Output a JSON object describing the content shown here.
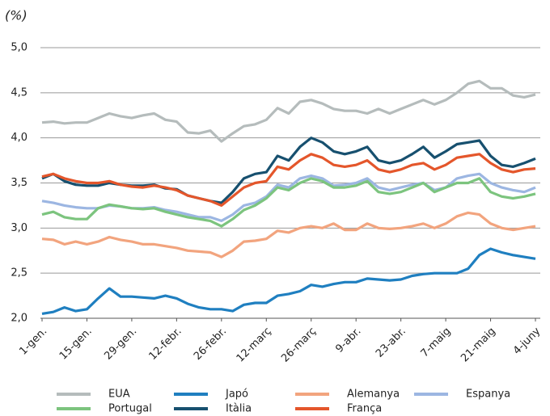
{
  "chart_data": {
    "type": "line",
    "title": "(%)",
    "categories": [
      "1-gen.",
      null,
      null,
      null,
      "15-gen.",
      null,
      null,
      null,
      "29-gen.",
      null,
      null,
      null,
      "12-febr.",
      null,
      null,
      null,
      "26-febr.",
      null,
      null,
      null,
      "12-març",
      null,
      null,
      null,
      "26-març",
      null,
      null,
      null,
      "9-abr.",
      null,
      null,
      null,
      "23-abr.",
      null,
      null,
      null,
      "7-maig",
      null,
      null,
      null,
      "21-maig",
      null,
      null,
      null,
      "4-juny"
    ],
    "ylim": [
      2.0,
      5.0
    ],
    "yticks": [
      {
        "value": 2.0,
        "label": "2,0"
      },
      {
        "value": 2.5,
        "label": "2,5"
      },
      {
        "value": 3.0,
        "label": "3,0"
      },
      {
        "value": 3.5,
        "label": "3,5"
      },
      {
        "value": 4.0,
        "label": "4,0"
      },
      {
        "value": 4.5,
        "label": "4,5"
      },
      {
        "value": 5.0,
        "label": "5,0"
      }
    ],
    "grid": true,
    "series": [
      {
        "name": "EUA",
        "color": "#b5bcbc",
        "values": [
          4.17,
          4.18,
          4.16,
          4.17,
          4.17,
          4.22,
          4.27,
          4.24,
          4.22,
          4.25,
          4.27,
          4.2,
          4.18,
          4.06,
          4.05,
          4.08,
          3.96,
          4.05,
          4.13,
          4.15,
          4.2,
          4.33,
          4.27,
          4.4,
          4.42,
          4.38,
          4.32,
          4.3,
          4.3,
          4.27,
          4.32,
          4.27,
          4.32,
          4.37,
          4.42,
          4.37,
          4.42,
          4.5,
          4.6,
          4.63,
          4.55,
          4.55,
          4.47,
          4.45,
          4.48
        ]
      },
      {
        "name": "Japó",
        "color": "#1f7fc0",
        "values": [
          2.05,
          2.07,
          2.12,
          2.08,
          2.1,
          2.22,
          2.33,
          2.24,
          2.24,
          2.23,
          2.22,
          2.25,
          2.22,
          2.16,
          2.12,
          2.1,
          2.1,
          2.08,
          2.15,
          2.17,
          2.17,
          2.25,
          2.27,
          2.3,
          2.37,
          2.35,
          2.38,
          2.4,
          2.4,
          2.44,
          2.43,
          2.42,
          2.43,
          2.47,
          2.49,
          2.5,
          2.5,
          2.5,
          2.55,
          2.7,
          2.77,
          2.73,
          2.7,
          2.68,
          2.66
        ]
      },
      {
        "name": "Alemanya",
        "color": "#f2a47e",
        "values": [
          2.88,
          2.87,
          2.82,
          2.85,
          2.82,
          2.85,
          2.9,
          2.87,
          2.85,
          2.82,
          2.82,
          2.8,
          2.78,
          2.75,
          2.74,
          2.73,
          2.68,
          2.75,
          2.85,
          2.86,
          2.88,
          2.97,
          2.95,
          3.0,
          3.02,
          3.0,
          3.05,
          2.98,
          2.98,
          3.05,
          3.0,
          2.99,
          3.0,
          3.02,
          3.05,
          3.0,
          3.05,
          3.13,
          3.17,
          3.15,
          3.05,
          3.0,
          2.98,
          3.0,
          3.02
        ]
      },
      {
        "name": "Espanya",
        "color": "#9cb6e2",
        "values": [
          3.3,
          3.28,
          3.25,
          3.23,
          3.22,
          3.22,
          3.25,
          3.24,
          3.22,
          3.22,
          3.23,
          3.2,
          3.18,
          3.15,
          3.12,
          3.12,
          3.08,
          3.15,
          3.25,
          3.28,
          3.35,
          3.48,
          3.45,
          3.55,
          3.58,
          3.55,
          3.47,
          3.48,
          3.5,
          3.55,
          3.45,
          3.42,
          3.45,
          3.48,
          3.5,
          3.42,
          3.45,
          3.55,
          3.58,
          3.6,
          3.5,
          3.45,
          3.42,
          3.4,
          3.45
        ]
      },
      {
        "name": "Portugal",
        "color": "#7cc47e",
        "values": [
          3.15,
          3.18,
          3.12,
          3.1,
          3.1,
          3.22,
          3.26,
          3.24,
          3.22,
          3.21,
          3.22,
          3.18,
          3.15,
          3.12,
          3.1,
          3.08,
          3.02,
          3.1,
          3.2,
          3.25,
          3.33,
          3.45,
          3.42,
          3.5,
          3.55,
          3.52,
          3.45,
          3.45,
          3.47,
          3.52,
          3.4,
          3.38,
          3.4,
          3.45,
          3.5,
          3.4,
          3.45,
          3.5,
          3.5,
          3.55,
          3.4,
          3.35,
          3.33,
          3.35,
          3.38
        ]
      },
      {
        "name": "Itàlia",
        "color": "#17506f",
        "values": [
          3.55,
          3.6,
          3.52,
          3.48,
          3.47,
          3.47,
          3.5,
          3.48,
          3.47,
          3.47,
          3.48,
          3.44,
          3.43,
          3.36,
          3.33,
          3.3,
          3.28,
          3.4,
          3.55,
          3.6,
          3.62,
          3.8,
          3.75,
          3.9,
          4.0,
          3.95,
          3.85,
          3.82,
          3.85,
          3.9,
          3.75,
          3.72,
          3.75,
          3.82,
          3.9,
          3.78,
          3.85,
          3.93,
          3.95,
          3.97,
          3.8,
          3.7,
          3.68,
          3.72,
          3.77
        ]
      },
      {
        "name": "França",
        "color": "#e4562b",
        "values": [
          3.57,
          3.6,
          3.55,
          3.52,
          3.5,
          3.5,
          3.52,
          3.48,
          3.46,
          3.45,
          3.47,
          3.45,
          3.42,
          3.36,
          3.33,
          3.3,
          3.25,
          3.35,
          3.45,
          3.5,
          3.52,
          3.68,
          3.65,
          3.75,
          3.82,
          3.78,
          3.7,
          3.68,
          3.7,
          3.75,
          3.65,
          3.62,
          3.65,
          3.7,
          3.72,
          3.65,
          3.7,
          3.78,
          3.8,
          3.82,
          3.72,
          3.65,
          3.62,
          3.65,
          3.66
        ]
      }
    ]
  }
}
